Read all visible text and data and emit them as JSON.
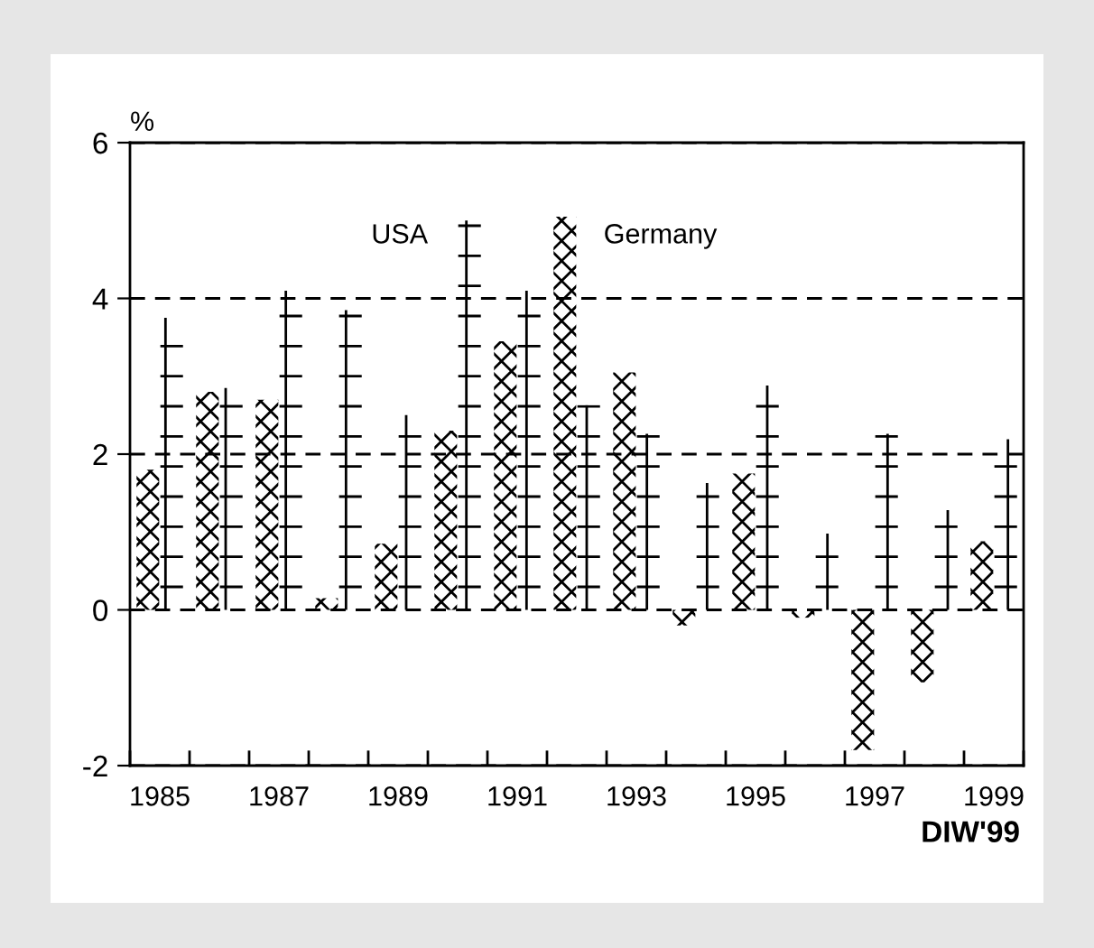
{
  "chart_data": {
    "type": "bar",
    "ylabel": "%",
    "categories": [
      "1985",
      null,
      "1987",
      null,
      "1989",
      null,
      "1991",
      null,
      "1993",
      null,
      "1995",
      null,
      "1997",
      null,
      "1999"
    ],
    "series": [
      {
        "name": "Germany",
        "color": "#000000",
        "values": [
          1.8,
          2.8,
          2.7,
          0.15,
          0.85,
          2.3,
          3.45,
          5.05,
          3.05,
          -0.2,
          1.75,
          -0.1,
          -1.8,
          -0.93,
          0.88
        ]
      },
      {
        "name": "USA",
        "color": "#000000",
        "values": [
          3.75,
          2.85,
          4.1,
          3.85,
          2.5,
          5.0,
          4.1,
          2.63,
          2.26,
          1.63,
          2.88,
          0.98,
          2.26,
          1.28,
          2.19
        ]
      }
    ],
    "ylim": [
      -2,
      6
    ],
    "yticks": [
      -2,
      0,
      2,
      4,
      6
    ],
    "grid": "y",
    "line_style": "dashed",
    "legend": false,
    "annotations": [
      "DIW'99"
    ]
  }
}
